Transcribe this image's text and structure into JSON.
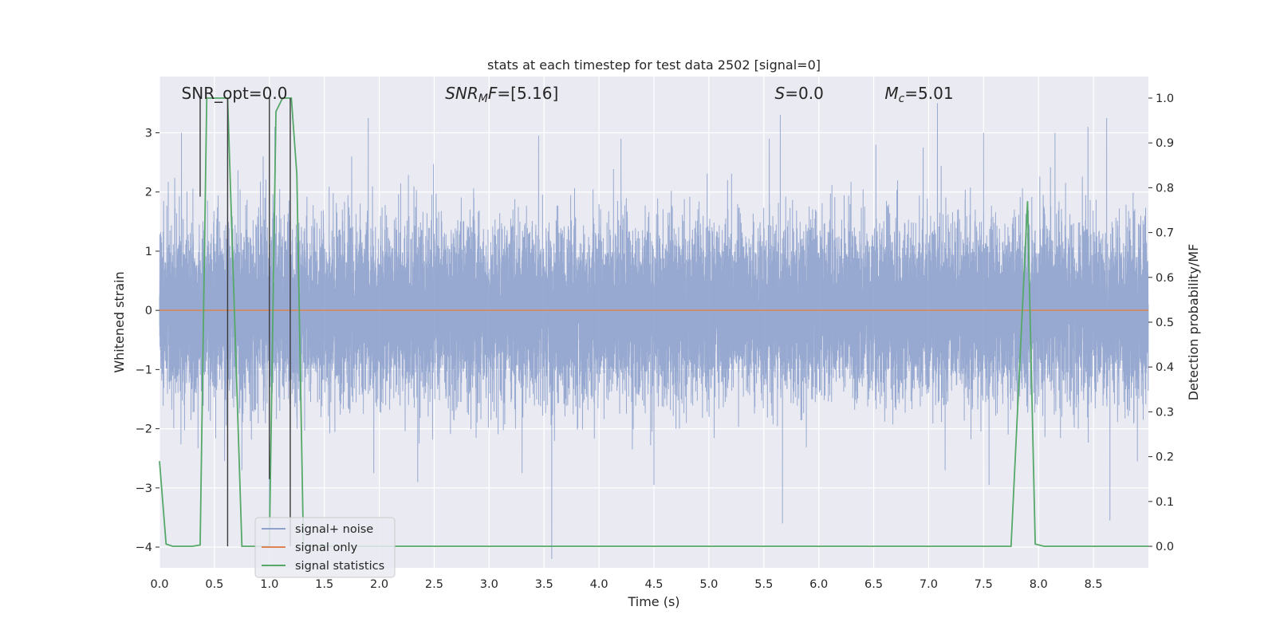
{
  "chart_data": {
    "type": "line",
    "title": "stats at each timestep for test data 2502 [signal=0]",
    "xlabel": "Time (s)",
    "ylabel_left": "Whitened strain",
    "ylabel_right": "Detection probability/MF",
    "xlim": [
      0.0,
      9.0
    ],
    "ylim_left": [
      -4.35,
      3.95
    ],
    "ylim_right": [
      -0.048,
      1.048
    ],
    "x_ticks": [
      0.0,
      0.5,
      1.0,
      1.5,
      2.0,
      2.5,
      3.0,
      3.5,
      4.0,
      4.5,
      5.0,
      5.5,
      6.0,
      6.5,
      7.0,
      7.5,
      8.0,
      8.5
    ],
    "x_tick_labels": [
      "0.0",
      "0.5",
      "1.0",
      "1.5",
      "2.0",
      "2.5",
      "3.0",
      "3.5",
      "4.0",
      "4.5",
      "5.0",
      "5.5",
      "6.0",
      "6.5",
      "7.0",
      "7.5",
      "8.0",
      "8.5"
    ],
    "y_left_ticks": [
      -4,
      -3,
      -2,
      -1,
      0,
      1,
      2,
      3
    ],
    "y_left_tick_labels": [
      "−4",
      "−3",
      "−2",
      "−1",
      "0",
      "1",
      "2",
      "3"
    ],
    "y_right_ticks": [
      0.0,
      0.1,
      0.2,
      0.3,
      0.4,
      0.5,
      0.6,
      0.7,
      0.8,
      0.9,
      1.0
    ],
    "y_right_tick_labels": [
      "0.0",
      "0.1",
      "0.2",
      "0.3",
      "0.4",
      "0.5",
      "0.6",
      "0.7",
      "0.8",
      "0.9",
      "1.0"
    ],
    "grid": true,
    "legend_position": "lower-left",
    "annotations": [
      {
        "text": "SNR_opt=0.0",
        "x": 0.2
      },
      {
        "text": "SNR_MF=[5.16]",
        "x": 2.6
      },
      {
        "text": "S=0.0",
        "x": 5.6
      },
      {
        "text": "M_c=5.01",
        "x": 6.6
      }
    ],
    "series": [
      {
        "name": "signal+ noise",
        "color": "#8ea2cc",
        "axis": "left",
        "sample_rate": 2048,
        "std": 0.7,
        "peaks": [
          [
            0.2,
            3.0
          ],
          [
            0.62,
            3.4
          ],
          [
            0.75,
            -2.7
          ],
          [
            1.0,
            -4.0
          ],
          [
            1.05,
            3.1
          ],
          [
            1.9,
            3.25
          ],
          [
            1.95,
            -2.75
          ],
          [
            2.35,
            -2.9
          ],
          [
            3.3,
            -2.75
          ],
          [
            3.45,
            2.95
          ],
          [
            3.57,
            -4.2
          ],
          [
            4.2,
            2.9
          ],
          [
            4.5,
            -2.95
          ],
          [
            5.55,
            2.9
          ],
          [
            5.65,
            3.3
          ],
          [
            5.67,
            -3.6
          ],
          [
            6.52,
            2.8
          ],
          [
            6.95,
            2.75
          ],
          [
            7.08,
            3.5
          ],
          [
            7.15,
            -2.7
          ],
          [
            7.5,
            3.0
          ],
          [
            7.55,
            -2.95
          ],
          [
            8.15,
            3.0
          ],
          [
            8.45,
            3.1
          ],
          [
            8.62,
            3.25
          ],
          [
            8.65,
            -3.55
          ],
          [
            8.9,
            -2.55
          ]
        ]
      },
      {
        "name": "signal only",
        "color": "#dd8452",
        "axis": "left",
        "values": [
          [
            0.0,
            0.0
          ],
          [
            9.0,
            0.0
          ]
        ]
      },
      {
        "name": "signal statistics",
        "color": "#55a868",
        "axis": "right",
        "values": [
          [
            0.0,
            0.19
          ],
          [
            0.06,
            0.005
          ],
          [
            0.12,
            0.0
          ],
          [
            0.3,
            0.0
          ],
          [
            0.37,
            0.003
          ],
          [
            0.43,
            1.0
          ],
          [
            0.62,
            1.0
          ],
          [
            0.75,
            0.0
          ],
          [
            1.0,
            0.0
          ],
          [
            1.06,
            0.97
          ],
          [
            1.12,
            1.0
          ],
          [
            1.2,
            1.0
          ],
          [
            1.25,
            0.83
          ],
          [
            1.31,
            0.0
          ],
          [
            7.75,
            0.0
          ],
          [
            7.9,
            0.77
          ],
          [
            7.97,
            0.005
          ],
          [
            8.05,
            0.0
          ],
          [
            9.0,
            0.0
          ]
        ]
      }
    ],
    "markers": [
      {
        "x": 0.37,
        "color": "#3a3a3a",
        "axis": "right",
        "values": [
          0.78,
          1.0
        ]
      },
      {
        "x": 0.62,
        "color": "#3a3a3a",
        "axis": "right",
        "values": [
          0.0,
          1.0
        ]
      },
      {
        "x": 1.0,
        "color": "#3a3a3a",
        "axis": "right",
        "values": [
          0.15,
          1.0
        ]
      },
      {
        "x": 1.19,
        "color": "#3a3a3a",
        "axis": "right",
        "values": [
          0.0,
          1.0
        ]
      }
    ],
    "background": "#eaeaf2",
    "grid_color": "#ffffff"
  }
}
